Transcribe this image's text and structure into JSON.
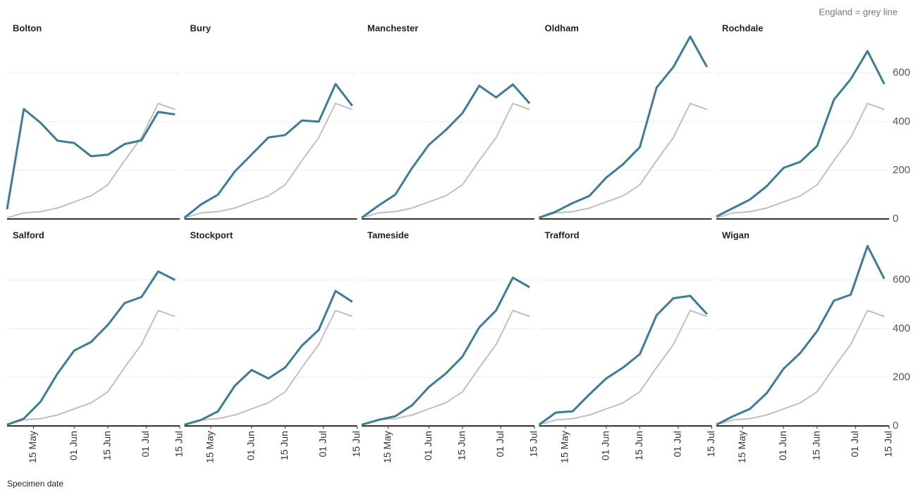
{
  "annotation": "England = grey line",
  "x_label": "Specimen date",
  "chart_data": [
    {
      "type": "line",
      "title": "Bolton",
      "x": [
        "04 May",
        "11 May",
        "18 May",
        "25 May",
        "01 Jun",
        "08 Jun",
        "15 Jun",
        "22 Jun",
        "29 Jun",
        "06 Jul",
        "13 Jul"
      ],
      "xlim": [
        "04 May",
        "15 Jul"
      ],
      "ylim": [
        0,
        770
      ],
      "yticks": [
        0,
        200,
        400,
        600
      ],
      "grid": true,
      "series": [
        {
          "color": "#c0c0c0",
          "values": [
            5,
            25,
            30,
            45,
            70,
            95,
            140,
            240,
            335,
            475,
            450
          ]
        },
        {
          "color": "#3b7d99",
          "values": [
            40,
            452,
            395,
            322,
            312,
            258,
            264,
            308,
            323,
            440,
            430
          ]
        }
      ]
    },
    {
      "type": "line",
      "title": "Bury",
      "x": [
        "04 May",
        "11 May",
        "18 May",
        "25 May",
        "01 Jun",
        "08 Jun",
        "15 Jun",
        "22 Jun",
        "29 Jun",
        "06 Jul",
        "13 Jul"
      ],
      "xlim": [
        "04 May",
        "15 Jul"
      ],
      "ylim": [
        0,
        770
      ],
      "yticks": [
        0,
        200,
        400,
        600
      ],
      "grid": true,
      "series": [
        {
          "color": "#c0c0c0",
          "values": [
            5,
            25,
            30,
            45,
            70,
            95,
            140,
            240,
            335,
            475,
            450
          ]
        },
        {
          "color": "#3b7d99",
          "values": [
            5,
            60,
            100,
            195,
            265,
            335,
            345,
            405,
            400,
            555,
            465
          ]
        }
      ]
    },
    {
      "type": "line",
      "title": "Manchester",
      "x": [
        "04 May",
        "11 May",
        "18 May",
        "25 May",
        "01 Jun",
        "08 Jun",
        "15 Jun",
        "22 Jun",
        "29 Jun",
        "06 Jul",
        "13 Jul"
      ],
      "xlim": [
        "04 May",
        "15 Jul"
      ],
      "ylim": [
        0,
        770
      ],
      "yticks": [
        0,
        200,
        400,
        600
      ],
      "grid": true,
      "series": [
        {
          "color": "#c0c0c0",
          "values": [
            5,
            25,
            30,
            45,
            70,
            95,
            140,
            240,
            335,
            475,
            450
          ]
        },
        {
          "color": "#3b7d99",
          "values": [
            5,
            55,
            100,
            210,
            305,
            365,
            435,
            548,
            500,
            553,
            475
          ]
        }
      ]
    },
    {
      "type": "line",
      "title": "Oldham",
      "x": [
        "04 May",
        "11 May",
        "18 May",
        "25 May",
        "01 Jun",
        "08 Jun",
        "15 Jun",
        "22 Jun",
        "29 Jun",
        "06 Jul",
        "13 Jul"
      ],
      "xlim": [
        "04 May",
        "15 Jul"
      ],
      "ylim": [
        0,
        770
      ],
      "yticks": [
        0,
        200,
        400,
        600
      ],
      "grid": true,
      "series": [
        {
          "color": "#c0c0c0",
          "values": [
            5,
            25,
            30,
            45,
            70,
            95,
            140,
            240,
            335,
            475,
            450
          ]
        },
        {
          "color": "#3b7d99",
          "values": [
            5,
            30,
            65,
            95,
            170,
            225,
            295,
            540,
            625,
            750,
            625
          ]
        }
      ]
    },
    {
      "type": "line",
      "title": "Rochdale",
      "x": [
        "04 May",
        "11 May",
        "18 May",
        "25 May",
        "01 Jun",
        "08 Jun",
        "15 Jun",
        "22 Jun",
        "29 Jun",
        "06 Jul",
        "13 Jul"
      ],
      "xlim": [
        "04 May",
        "15 Jul"
      ],
      "ylim": [
        0,
        770
      ],
      "yticks": [
        0,
        200,
        400,
        600
      ],
      "grid": true,
      "series": [
        {
          "color": "#c0c0c0",
          "values": [
            5,
            25,
            30,
            45,
            70,
            95,
            140,
            240,
            335,
            475,
            450
          ]
        },
        {
          "color": "#3b7d99",
          "values": [
            10,
            45,
            80,
            135,
            210,
            235,
            300,
            490,
            575,
            690,
            555
          ]
        }
      ]
    },
    {
      "type": "line",
      "title": "Salford",
      "x": [
        "04 May",
        "11 May",
        "18 May",
        "25 May",
        "01 Jun",
        "08 Jun",
        "15 Jun",
        "22 Jun",
        "29 Jun",
        "06 Jul",
        "13 Jul"
      ],
      "xlim": [
        "04 May",
        "15 Jul"
      ],
      "xticks": [
        "15 May",
        "01 Jun",
        "15 Jun",
        "01 Jul",
        "15 Jul"
      ],
      "ylim": [
        0,
        770
      ],
      "yticks": [
        0,
        200,
        400,
        600
      ],
      "grid": true,
      "series": [
        {
          "color": "#c0c0c0",
          "values": [
            5,
            25,
            30,
            45,
            70,
            95,
            140,
            240,
            335,
            475,
            450
          ]
        },
        {
          "color": "#3b7d99",
          "values": [
            5,
            30,
            100,
            215,
            310,
            345,
            415,
            505,
            530,
            635,
            600
          ]
        }
      ]
    },
    {
      "type": "line",
      "title": "Stockport",
      "x": [
        "04 May",
        "11 May",
        "18 May",
        "25 May",
        "01 Jun",
        "08 Jun",
        "15 Jun",
        "22 Jun",
        "29 Jun",
        "06 Jul",
        "13 Jul"
      ],
      "xlim": [
        "04 May",
        "15 Jul"
      ],
      "xticks": [
        "15 May",
        "01 Jun",
        "15 Jun",
        "01 Jul",
        "15 Jul"
      ],
      "ylim": [
        0,
        770
      ],
      "yticks": [
        0,
        200,
        400,
        600
      ],
      "grid": true,
      "series": [
        {
          "color": "#c0c0c0",
          "values": [
            5,
            25,
            30,
            45,
            70,
            95,
            140,
            240,
            335,
            475,
            450
          ]
        },
        {
          "color": "#3b7d99",
          "values": [
            5,
            25,
            60,
            165,
            230,
            195,
            240,
            330,
            395,
            555,
            510
          ]
        }
      ]
    },
    {
      "type": "line",
      "title": "Tameside",
      "x": [
        "04 May",
        "11 May",
        "18 May",
        "25 May",
        "01 Jun",
        "08 Jun",
        "15 Jun",
        "22 Jun",
        "29 Jun",
        "06 Jul",
        "13 Jul"
      ],
      "xlim": [
        "04 May",
        "15 Jul"
      ],
      "xticks": [
        "15 May",
        "01 Jun",
        "15 Jun",
        "01 Jul",
        "15 Jul"
      ],
      "ylim": [
        0,
        770
      ],
      "yticks": [
        0,
        200,
        400,
        600
      ],
      "grid": true,
      "series": [
        {
          "color": "#c0c0c0",
          "values": [
            5,
            25,
            30,
            45,
            70,
            95,
            140,
            240,
            335,
            475,
            450
          ]
        },
        {
          "color": "#3b7d99",
          "values": [
            5,
            25,
            40,
            85,
            160,
            215,
            285,
            405,
            475,
            610,
            570
          ]
        }
      ]
    },
    {
      "type": "line",
      "title": "Trafford",
      "x": [
        "04 May",
        "11 May",
        "18 May",
        "25 May",
        "01 Jun",
        "08 Jun",
        "15 Jun",
        "22 Jun",
        "29 Jun",
        "06 Jul",
        "13 Jul"
      ],
      "xlim": [
        "04 May",
        "15 Jul"
      ],
      "xticks": [
        "15 May",
        "01 Jun",
        "15 Jun",
        "01 Jul",
        "15 Jul"
      ],
      "ylim": [
        0,
        770
      ],
      "yticks": [
        0,
        200,
        400,
        600
      ],
      "grid": true,
      "series": [
        {
          "color": "#c0c0c0",
          "values": [
            5,
            25,
            30,
            45,
            70,
            95,
            140,
            240,
            335,
            475,
            450
          ]
        },
        {
          "color": "#3b7d99",
          "values": [
            5,
            55,
            60,
            130,
            195,
            240,
            295,
            455,
            525,
            535,
            460
          ]
        }
      ]
    },
    {
      "type": "line",
      "title": "Wigan",
      "x": [
        "04 May",
        "11 May",
        "18 May",
        "25 May",
        "01 Jun",
        "08 Jun",
        "15 Jun",
        "22 Jun",
        "29 Jun",
        "06 Jul",
        "13 Jul"
      ],
      "xlim": [
        "04 May",
        "15 Jul"
      ],
      "xticks": [
        "15 May",
        "01 Jun",
        "15 Jun",
        "01 Jul",
        "15 Jul"
      ],
      "ylim": [
        0,
        770
      ],
      "yticks": [
        0,
        200,
        400,
        600
      ],
      "grid": true,
      "series": [
        {
          "color": "#c0c0c0",
          "values": [
            5,
            25,
            30,
            45,
            70,
            95,
            140,
            240,
            335,
            475,
            450
          ]
        },
        {
          "color": "#3b7d99",
          "values": [
            5,
            40,
            70,
            135,
            235,
            300,
            390,
            515,
            540,
            740,
            605
          ]
        }
      ]
    }
  ]
}
